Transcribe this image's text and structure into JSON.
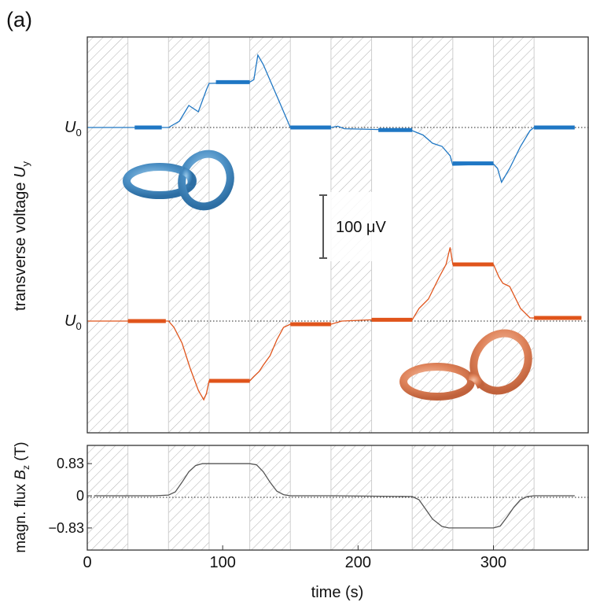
{
  "panel_label": "(a)",
  "chart_data": [
    {
      "type": "line",
      "panel": "top",
      "ylabel": "transverse voltage U_y",
      "ylabel_main": "transverse voltage ",
      "ylabel_sym": "U",
      "ylabel_sub": "y",
      "baseline_label_sym": "U",
      "baseline_label_sub": "0",
      "scale_bar_label": "100 μV",
      "scale_bar_value_uV": 100,
      "xlim": [
        0,
        370
      ],
      "shaded_intervals": [
        [
          0,
          30
        ],
        [
          60,
          90
        ],
        [
          120,
          150
        ],
        [
          180,
          210
        ],
        [
          240,
          270
        ],
        [
          300,
          330
        ]
      ],
      "colors": {
        "blue": "#1f77c4",
        "orange": "#e0541b"
      },
      "series": [
        {
          "color_key": "blue",
          "baseline_uV": 0,
          "points": [
            [
              0,
              0
            ],
            [
              30,
              0
            ],
            [
              60,
              0
            ],
            [
              68,
              10
            ],
            [
              75,
              35
            ],
            [
              82,
              25
            ],
            [
              88,
              60
            ],
            [
              90,
              70
            ],
            [
              120,
              72
            ],
            [
              123,
              76
            ],
            [
              126,
              115
            ],
            [
              130,
              100
            ],
            [
              135,
              75
            ],
            [
              142,
              40
            ],
            [
              150,
              0
            ],
            [
              180,
              0
            ],
            [
              185,
              2
            ],
            [
              190,
              -2
            ],
            [
              210,
              -3
            ],
            [
              240,
              -5
            ],
            [
              248,
              -12
            ],
            [
              255,
              -25
            ],
            [
              262,
              -30
            ],
            [
              268,
              -45
            ],
            [
              270,
              -60
            ],
            [
              300,
              -58
            ],
            [
              303,
              -65
            ],
            [
              306,
              -87
            ],
            [
              312,
              -65
            ],
            [
              320,
              -30
            ],
            [
              327,
              -5
            ],
            [
              330,
              0
            ],
            [
              360,
              0
            ]
          ],
          "plateaus": [
            [
              35,
              55,
              0
            ],
            [
              95,
              120,
              72
            ],
            [
              150,
              180,
              0
            ],
            [
              215,
              240,
              -4
            ],
            [
              270,
              300,
              -57
            ],
            [
              330,
              360,
              0
            ]
          ]
        },
        {
          "color_key": "orange",
          "baseline_uV": 0,
          "points": [
            [
              0,
              0
            ],
            [
              30,
              0
            ],
            [
              60,
              0
            ],
            [
              64,
              -10
            ],
            [
              70,
              -35
            ],
            [
              76,
              -75
            ],
            [
              82,
              -110
            ],
            [
              86,
              -125
            ],
            [
              88,
              -115
            ],
            [
              90,
              -95
            ],
            [
              120,
              -95
            ],
            [
              123,
              -88
            ],
            [
              127,
              -80
            ],
            [
              130,
              -70
            ],
            [
              135,
              -55
            ],
            [
              140,
              -30
            ],
            [
              145,
              -10
            ],
            [
              150,
              -5
            ],
            [
              180,
              -5
            ],
            [
              188,
              0
            ],
            [
              210,
              2
            ],
            [
              240,
              2
            ],
            [
              245,
              20
            ],
            [
              252,
              35
            ],
            [
              260,
              70
            ],
            [
              265,
              90
            ],
            [
              268,
              117
            ],
            [
              270,
              90
            ],
            [
              300,
              90
            ],
            [
              304,
              70
            ],
            [
              307,
              60
            ],
            [
              312,
              55
            ],
            [
              320,
              20
            ],
            [
              327,
              5
            ],
            [
              330,
              5
            ],
            [
              360,
              5
            ],
            [
              365,
              6
            ]
          ],
          "plateaus": [
            [
              30,
              58,
              0
            ],
            [
              90,
              120,
              -95
            ],
            [
              150,
              180,
              -5
            ],
            [
              210,
              240,
              2
            ],
            [
              270,
              300,
              90
            ],
            [
              330,
              365,
              5
            ]
          ]
        }
      ]
    },
    {
      "type": "line",
      "panel": "bottom",
      "ylabel": "magn. flux B_z (T)",
      "ylabel_main": "magn. flux ",
      "ylabel_sym": "B",
      "ylabel_sub": "z",
      "ylabel_unit": " (T)",
      "xlabel": "time (s)",
      "xticks": [
        "0",
        "100",
        "200",
        "300"
      ],
      "xtick_values": [
        0,
        100,
        200,
        300
      ],
      "yticks": [
        "0.83",
        "0",
        "−0.83"
      ],
      "ytick_values": [
        0.83,
        0,
        -0.83
      ],
      "xlim": [
        0,
        370
      ],
      "ylim": [
        -1.4,
        1.3
      ],
      "shaded_intervals": [
        [
          0,
          30
        ],
        [
          60,
          90
        ],
        [
          120,
          150
        ],
        [
          180,
          210
        ],
        [
          240,
          270
        ],
        [
          300,
          330
        ]
      ],
      "color": "#555555",
      "points": [
        [
          5,
          0
        ],
        [
          50,
          0
        ],
        [
          60,
          0.02
        ],
        [
          65,
          0.1
        ],
        [
          70,
          0.35
        ],
        [
          75,
          0.62
        ],
        [
          80,
          0.78
        ],
        [
          85,
          0.83
        ],
        [
          120,
          0.83
        ],
        [
          125,
          0.8
        ],
        [
          130,
          0.62
        ],
        [
          135,
          0.35
        ],
        [
          140,
          0.12
        ],
        [
          145,
          0.03
        ],
        [
          150,
          0
        ],
        [
          183,
          0
        ],
        [
          240,
          -0.02
        ],
        [
          245,
          -0.1
        ],
        [
          250,
          -0.35
        ],
        [
          255,
          -0.6
        ],
        [
          262,
          -0.79
        ],
        [
          267,
          -0.83
        ],
        [
          300,
          -0.83
        ],
        [
          305,
          -0.78
        ],
        [
          310,
          -0.55
        ],
        [
          315,
          -0.3
        ],
        [
          320,
          -0.1
        ],
        [
          325,
          -0.02
        ],
        [
          330,
          0
        ],
        [
          360,
          0
        ]
      ]
    }
  ]
}
